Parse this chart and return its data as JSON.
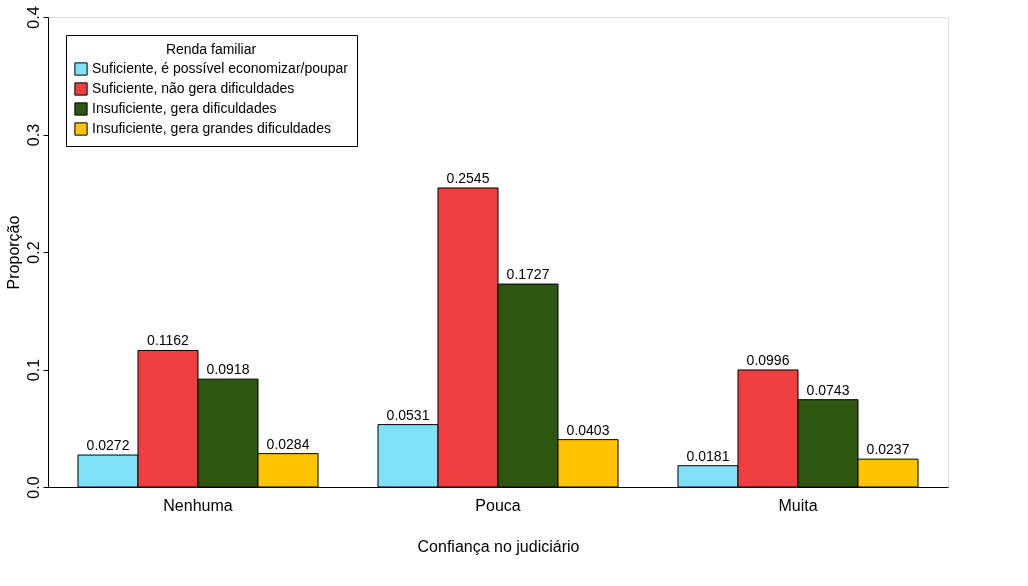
{
  "chart_data": {
    "type": "bar",
    "xlabel": "Confiança no judiciário",
    "ylabel": "Proporção",
    "legend_title": "Renda familiar",
    "legend": "top left",
    "grid": false,
    "data_labels": true,
    "categories": [
      "Nenhuma",
      "Pouca",
      "Muita"
    ],
    "ylim": [
      0,
      0.4
    ],
    "yticks": [
      {
        "value": 0,
        "label": "0.0"
      },
      {
        "value": 0.1,
        "label": "0.1"
      },
      {
        "value": 0.2,
        "label": "0.2"
      },
      {
        "value": 0.3,
        "label": "0.3"
      },
      {
        "value": 0.4,
        "label": "0.4"
      }
    ],
    "series": [
      {
        "name": "Suficiente, é possível economizar/poupar",
        "color": "#7fe0f8",
        "values": [
          0.0272,
          0.0531,
          0.0181
        ]
      },
      {
        "name": "Suficiente, não gera dificuldades",
        "color": "#ee3e40",
        "values": [
          0.1162,
          0.2545,
          0.0996
        ]
      },
      {
        "name": "Insuficiente, gera dificuldades",
        "color": "#2f5611",
        "values": [
          0.0918,
          0.1727,
          0.0743
        ]
      },
      {
        "name": "Insuficiente, gera grandes dificuldades",
        "color": "#ffc300",
        "values": [
          0.0284,
          0.0403,
          0.0237
        ]
      }
    ]
  }
}
